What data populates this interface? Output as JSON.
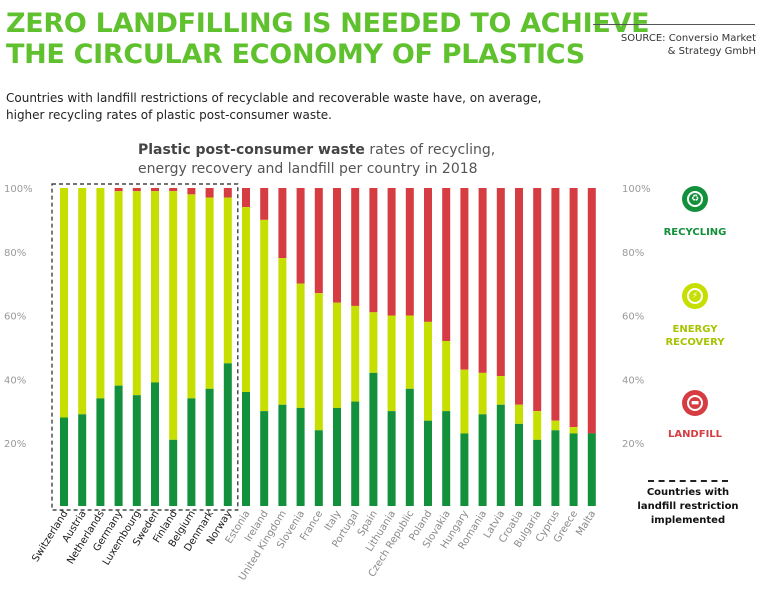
{
  "header": {
    "title_line1": "ZERO LANDFILLING IS NEEDED TO ACHIEVE",
    "title_line2": "THE CIRCULAR ECONOMY OF PLASTICS",
    "source_line1": "SOURCE: Conversio Market",
    "source_line2": "& Strategy GmbH",
    "subtitle_line1": "Countries with landfill restrictions of recyclable and recoverable waste have, on average,",
    "subtitle_line2": "higher recycling rates of plastic post-consumer waste."
  },
  "legend": {
    "recycling": "RECYCLING",
    "energy_line1": "ENERGY",
    "energy_line2": "RECOVERY",
    "landfill": "LANDFILL",
    "restriction_line1": "Countries with",
    "restriction_line2": "landfill restriction",
    "restriction_line3": "implemented"
  },
  "colors": {
    "recycling": "#13903b",
    "energy_recovery": "#c6df00",
    "landfill": "#d53d43",
    "title": "#5fc12e"
  },
  "chart_data": {
    "type": "bar",
    "stacked": true,
    "title_bold": "Plastic post-consumer waste",
    "title_rest": "rates of recycling,",
    "title_line2": "energy recovery and landfill per country in 2018",
    "ylim": [
      0,
      100
    ],
    "yticks": [
      "20%",
      "40%",
      "60%",
      "80%",
      "100%"
    ],
    "ytick_values": [
      20,
      40,
      60,
      80,
      100
    ],
    "categories": [
      "Switzerland",
      "Austria",
      "Netherlands",
      "Germany",
      "Luxembourg",
      "Sweden",
      "Finland",
      "Belgium",
      "Denmark",
      "Norway",
      "Estonia",
      "Ireland",
      "United Kingdom",
      "Slovenia",
      "France",
      "Italy",
      "Portugal",
      "Spain",
      "Lithuania",
      "Czech Republic",
      "Poland",
      "Slovakia",
      "Hungary",
      "Romania",
      "Latvia",
      "Croatia",
      "Bulgaria",
      "Cyprus",
      "Greece",
      "Malta"
    ],
    "restricted_count": 10,
    "series": [
      {
        "name": "RECYCLING",
        "values": [
          28,
          29,
          34,
          38,
          35,
          39,
          21,
          34,
          37,
          45,
          36,
          30,
          32,
          31,
          24,
          31,
          33,
          42,
          30,
          37,
          27,
          30,
          23,
          29,
          32,
          26,
          21,
          24,
          23,
          23
        ]
      },
      {
        "name": "ENERGY RECOVERY",
        "values": [
          72,
          71,
          66,
          61,
          64,
          60,
          78,
          64,
          60,
          52,
          58,
          60,
          46,
          39,
          43,
          33,
          30,
          19,
          30,
          23,
          31,
          22,
          20,
          13,
          9,
          6,
          9,
          3,
          2,
          0
        ]
      },
      {
        "name": "LANDFILL",
        "values": [
          0,
          0,
          0,
          1,
          1,
          1,
          1,
          2,
          3,
          3,
          6,
          10,
          22,
          30,
          33,
          36,
          37,
          39,
          40,
          40,
          42,
          48,
          57,
          58,
          59,
          68,
          70,
          73,
          75,
          77
        ]
      }
    ]
  }
}
